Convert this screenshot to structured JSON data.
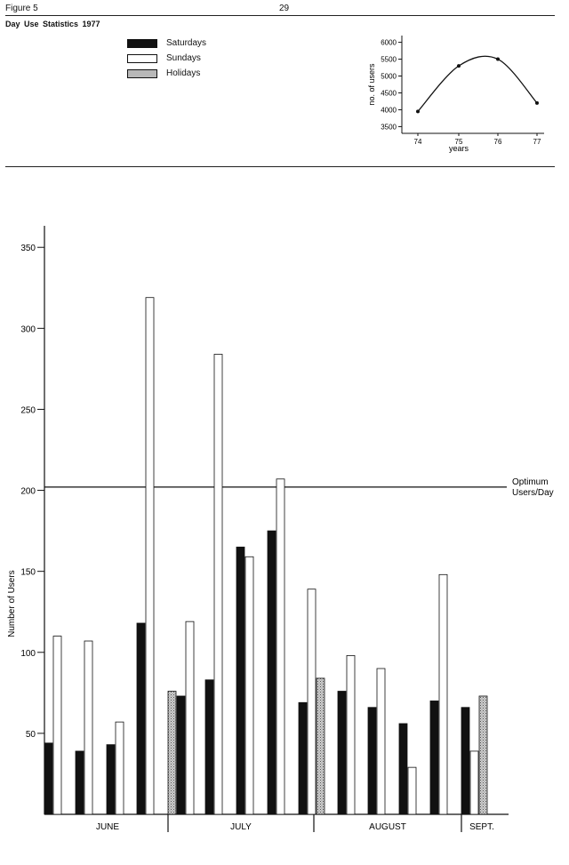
{
  "header": {
    "figure_label": "Figure 5",
    "page_number": "29",
    "title": "Day Use Statistics 1977"
  },
  "legend": [
    {
      "label": "Saturdays",
      "pattern": "solid",
      "color": "#111111"
    },
    {
      "label": "Sundays",
      "pattern": "open",
      "color": "#ffffff"
    },
    {
      "label": "Holidays",
      "pattern": "stippled",
      "color": "#b8b8b8"
    }
  ],
  "chart_data": [
    {
      "type": "line",
      "x": [
        "74",
        "75",
        "76",
        "77"
      ],
      "values": [
        3950,
        5300,
        5500,
        4200
      ],
      "xlabel": "years",
      "ylabel": "no. of users",
      "yticks": [
        3500,
        4000,
        4500,
        5000,
        5500,
        6000
      ],
      "ylim": [
        3300,
        6200
      ],
      "grid": false
    },
    {
      "type": "bar",
      "xlabel": "",
      "ylabel": "Number of Users",
      "ylim": [
        0,
        360
      ],
      "yticks": [
        50,
        100,
        150,
        200,
        250,
        300,
        350
      ],
      "grid": false,
      "months": [
        "JUNE",
        "JULY",
        "AUGUST",
        "SEPT."
      ],
      "reference_line": {
        "value": 202,
        "label_line1": "Optimum",
        "label_line2": "Users/Day"
      },
      "groups": [
        {
          "month": "JUNE",
          "bars": [
            {
              "series": "Saturdays",
              "value": 44
            },
            {
              "series": "Sundays",
              "value": 110
            }
          ]
        },
        {
          "month": "JUNE",
          "bars": [
            {
              "series": "Saturdays",
              "value": 39
            },
            {
              "series": "Sundays",
              "value": 107
            }
          ]
        },
        {
          "month": "JUNE",
          "bars": [
            {
              "series": "Saturdays",
              "value": 43
            },
            {
              "series": "Sundays",
              "value": 57
            }
          ]
        },
        {
          "month": "JUNE",
          "bars": [
            {
              "series": "Saturdays",
              "value": 118
            },
            {
              "series": "Sundays",
              "value": 319
            }
          ]
        },
        {
          "month": "JULY",
          "bars": [
            {
              "series": "Holidays",
              "value": 76
            },
            {
              "series": "Saturdays",
              "value": 73
            },
            {
              "series": "Sundays",
              "value": 119
            }
          ]
        },
        {
          "month": "JULY",
          "bars": [
            {
              "series": "Saturdays",
              "value": 83
            },
            {
              "series": "Sundays",
              "value": 284
            }
          ]
        },
        {
          "month": "JULY",
          "bars": [
            {
              "series": "Saturdays",
              "value": 165
            },
            {
              "series": "Sundays",
              "value": 159
            }
          ]
        },
        {
          "month": "JULY",
          "bars": [
            {
              "series": "Saturdays",
              "value": 175
            },
            {
              "series": "Sundays",
              "value": 207
            }
          ]
        },
        {
          "month": "JULY",
          "bars": [
            {
              "series": "Saturdays",
              "value": 69
            },
            {
              "series": "Sundays",
              "value": 139
            },
            {
              "series": "Holidays",
              "value": 84
            }
          ]
        },
        {
          "month": "AUGUST",
          "bars": [
            {
              "series": "Saturdays",
              "value": 76
            },
            {
              "series": "Sundays",
              "value": 98
            }
          ]
        },
        {
          "month": "AUGUST",
          "bars": [
            {
              "series": "Saturdays",
              "value": 66
            },
            {
              "series": "Sundays",
              "value": 90
            }
          ]
        },
        {
          "month": "AUGUST",
          "bars": [
            {
              "series": "Saturdays",
              "value": 56
            },
            {
              "series": "Sundays",
              "value": 29
            }
          ]
        },
        {
          "month": "AUGUST",
          "bars": [
            {
              "series": "Saturdays",
              "value": 70
            },
            {
              "series": "Sundays",
              "value": 148
            }
          ]
        },
        {
          "month": "SEPT.",
          "bars": [
            {
              "series": "Saturdays",
              "value": 66
            },
            {
              "series": "Sundays",
              "value": 39
            },
            {
              "series": "Holidays",
              "value": 73
            }
          ]
        }
      ]
    }
  ]
}
